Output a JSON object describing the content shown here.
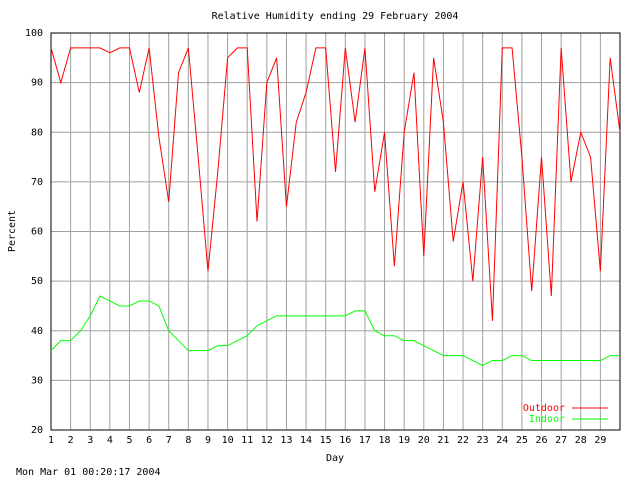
{
  "chart_data": {
    "type": "line",
    "title": "Relative Humidity ending 29 February 2004",
    "x_label": "Day",
    "y_label": "Percent",
    "x": [
      1,
      1.5,
      2,
      2.5,
      3,
      3.5,
      4,
      4.5,
      5,
      5.5,
      6,
      6.5,
      7,
      7.5,
      8,
      8.5,
      9,
      9.5,
      10,
      10.5,
      11,
      11.5,
      12,
      12.5,
      13,
      13.5,
      14,
      14.5,
      15,
      15.5,
      16,
      16.5,
      17,
      17.5,
      18,
      18.5,
      19,
      19.5,
      20,
      20.5,
      21,
      21.5,
      22,
      22.5,
      23,
      23.5,
      24,
      24.5,
      25,
      25.5,
      26,
      26.5,
      27,
      27.5,
      28,
      28.5,
      29,
      29.5,
      30
    ],
    "series": [
      {
        "name": "Outdoor",
        "color": "#ff0000",
        "values": [
          97,
          90,
          97,
          97,
          97,
          97,
          96,
          97,
          97,
          88,
          97,
          79,
          66,
          92,
          97,
          75,
          52,
          72,
          95,
          97,
          97,
          62,
          90,
          95,
          65,
          82,
          88,
          97,
          97,
          72,
          97,
          82,
          97,
          68,
          80,
          53,
          80,
          92,
          55,
          95,
          82,
          58,
          70,
          50,
          75,
          42,
          97,
          97,
          75,
          48,
          75,
          47,
          97,
          70,
          80,
          75,
          52,
          95,
          80
        ]
      },
      {
        "name": "Indoor",
        "color": "#00ff00",
        "values": [
          36,
          38,
          38,
          40,
          43,
          47,
          46,
          45,
          45,
          46,
          46,
          45,
          40,
          38,
          36,
          36,
          36,
          37,
          37,
          38,
          39,
          41,
          42,
          43,
          43,
          43,
          43,
          43,
          43,
          43,
          43,
          44,
          44,
          40,
          39,
          39,
          38,
          38,
          37,
          36,
          35,
          35,
          35,
          34,
          33,
          34,
          34,
          35,
          35,
          34,
          34,
          34,
          34,
          34,
          34,
          34,
          34,
          35,
          35
        ]
      }
    ],
    "xlim": [
      1,
      30
    ],
    "xticks": [
      1,
      2,
      3,
      4,
      5,
      6,
      7,
      8,
      9,
      10,
      11,
      12,
      13,
      14,
      15,
      16,
      17,
      18,
      19,
      20,
      21,
      22,
      23,
      24,
      25,
      26,
      27,
      28,
      29
    ],
    "ylim": [
      20,
      100
    ],
    "yticks": [
      20,
      30,
      40,
      50,
      60,
      70,
      80,
      90,
      100
    ],
    "grid": true,
    "legend": "lower right"
  },
  "footer": "Mon Mar 01 00:20:17 2004"
}
